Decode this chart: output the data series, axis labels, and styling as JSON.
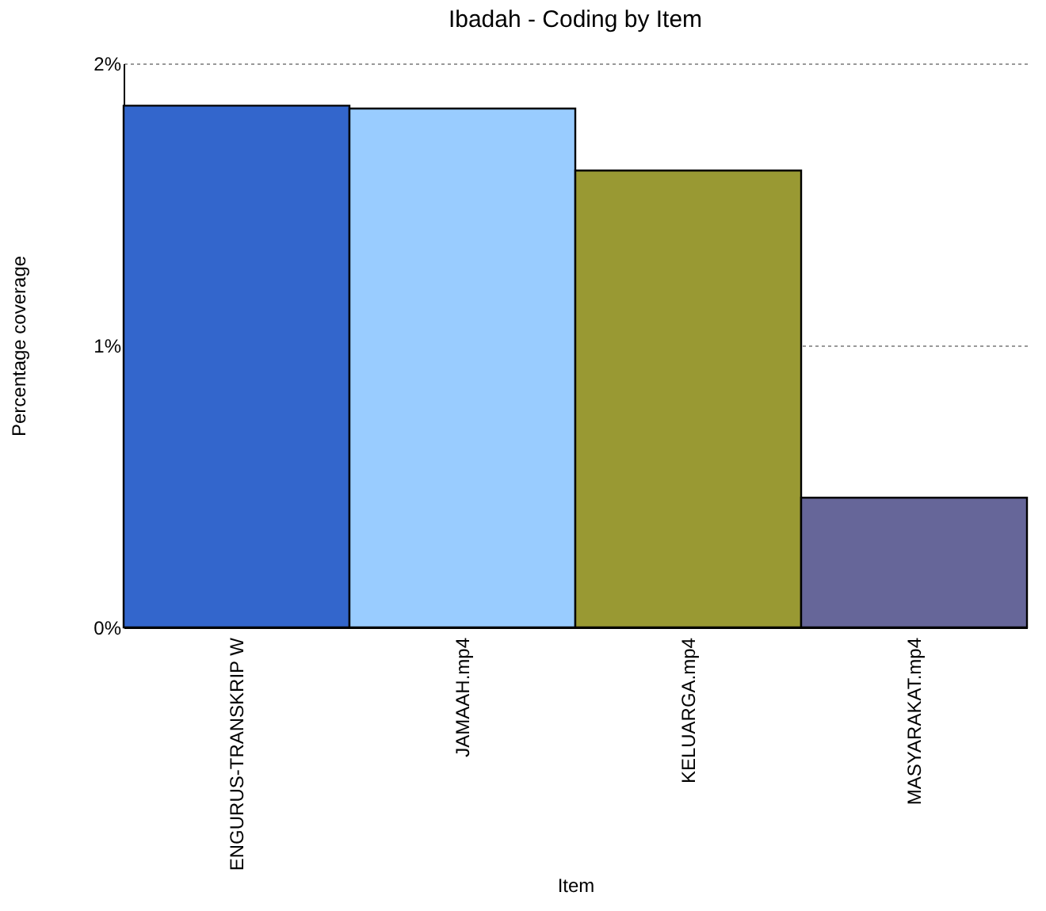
{
  "chart_data": {
    "type": "bar",
    "title": "Ibadah - Coding by Item",
    "xlabel": "Item",
    "ylabel": "Percentage coverage",
    "categories": [
      "ENGURUS-TRANSKRIP W",
      "JAMAAH.mp4",
      "KELUARGA.mp4",
      "MASYARAKAT.mp4"
    ],
    "values": [
      1.85,
      1.84,
      1.62,
      0.46
    ],
    "colors": [
      "#3366cc",
      "#99ccff",
      "#999933",
      "#666699"
    ],
    "ylim": [
      0,
      2
    ],
    "yticks": [
      {
        "value": 0,
        "label": "0%"
      },
      {
        "value": 1,
        "label": "1%"
      },
      {
        "value": 2,
        "label": "2%"
      }
    ],
    "grid": "y"
  }
}
